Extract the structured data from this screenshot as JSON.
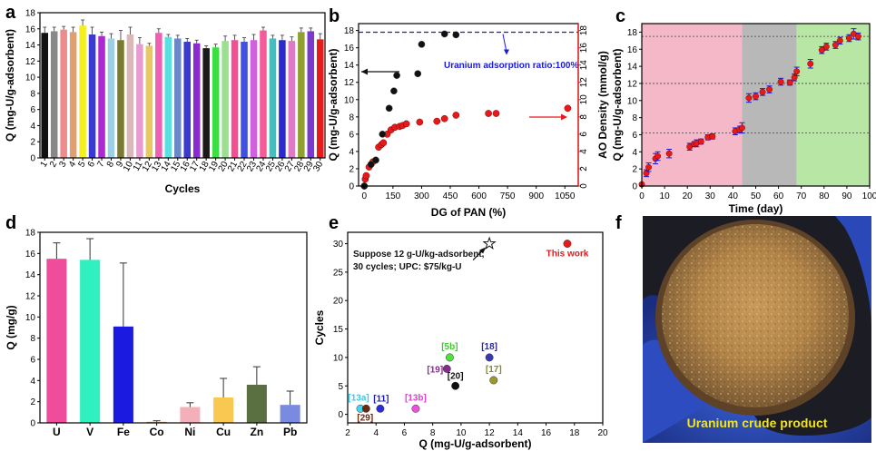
{
  "panel_letters": {
    "a": "a",
    "b": "b",
    "c": "c",
    "d": "d",
    "e": "e",
    "f": "f"
  },
  "colors": {
    "red": "#e8191a",
    "blue": "#1a1adc",
    "black": "#111111",
    "pink_band": "#f4b8c8",
    "grey_band": "#b8b8b8",
    "green_band": "#b8e6a4"
  },
  "chart_data": [
    {
      "id": "a",
      "type": "bar",
      "title": "",
      "xlabel": "Cycles",
      "ylabel": "Q (mg-U/g-adsorbent)",
      "ylim": [
        0,
        18
      ],
      "yticks": [
        0,
        2,
        4,
        6,
        8,
        10,
        12,
        14,
        16,
        18
      ],
      "categories": [
        "1",
        "2",
        "3",
        "4",
        "5",
        "6",
        "7",
        "8",
        "9",
        "10",
        "11",
        "12",
        "13",
        "14",
        "15",
        "16",
        "17",
        "18",
        "19",
        "20",
        "21",
        "22",
        "23",
        "24",
        "25",
        "26",
        "27",
        "28",
        "29",
        "30"
      ],
      "values": [
        15.5,
        15.7,
        15.9,
        15.6,
        16.4,
        15.3,
        15.1,
        14.8,
        14.6,
        15.3,
        14.1,
        13.9,
        15.5,
        15.0,
        14.8,
        14.4,
        14.2,
        13.6,
        13.7,
        14.5,
        14.6,
        14.4,
        14.6,
        15.8,
        14.8,
        14.6,
        14.5,
        15.6,
        15.7,
        14.7
      ],
      "errors": [
        0.7,
        0.5,
        0.4,
        0.6,
        0.7,
        0.9,
        0.5,
        0.6,
        1.2,
        0.9,
        0.8,
        0.3,
        0.5,
        0.3,
        0.4,
        0.4,
        0.4,
        0.3,
        0.4,
        0.6,
        0.6,
        0.5,
        0.7,
        0.4,
        0.4,
        0.6,
        0.5,
        0.5,
        0.4,
        0.7
      ],
      "bar_colors": [
        "#111111",
        "#888888",
        "#ed8c8c",
        "#e0a070",
        "#f5ef20",
        "#3a3ad0",
        "#ad2ad0",
        "#9ad0e8",
        "#7a7a30",
        "#d8b8b8",
        "#e89bd0",
        "#e8c860",
        "#f060b0",
        "#5ae0e0",
        "#6888c8",
        "#3a3ad0",
        "#8a2ad0",
        "#1a1a1a",
        "#3ae040",
        "#9ae090",
        "#f05090",
        "#4050e0",
        "#d060e0",
        "#f55a9a",
        "#40c0c0",
        "#2a2ad0",
        "#e07ac8",
        "#90a030",
        "#7a3ad0",
        "#e81a1a"
      ]
    },
    {
      "id": "b",
      "type": "scatter",
      "xlabel": "DG of PAN (%)",
      "ylabel": "Q (mg-U/g-adsorbent)",
      "ylabel_right": "AO Density (mmol/g)",
      "xlim": [
        -30,
        1120
      ],
      "xticks": [
        0,
        150,
        300,
        450,
        600,
        750,
        900,
        1050
      ],
      "ylim": [
        0,
        18.8
      ],
      "yticks": [
        0,
        2,
        4,
        6,
        8,
        10,
        12,
        14,
        16,
        18
      ],
      "ylim_right": [
        0,
        18.8
      ],
      "yticks_right": [
        0,
        2,
        4,
        6,
        8,
        10,
        12,
        14,
        16,
        18
      ],
      "reference_line": 17.8,
      "annotation": "Uranium adsorption ratio:100%",
      "series": [
        {
          "name": "Q",
          "axis": "left",
          "color": "#111111",
          "x": [
            0,
            35,
            60,
            95,
            130,
            155,
            170,
            280,
            300,
            420,
            480
          ],
          "y": [
            0,
            2.5,
            3.0,
            6.0,
            9.0,
            11.0,
            12.8,
            13.0,
            16.4,
            17.6,
            17.5
          ]
        },
        {
          "name": "AO Density",
          "axis": "right",
          "color": "#e8191a",
          "x": [
            0,
            5,
            10,
            25,
            35,
            45,
            60,
            75,
            90,
            100,
            120,
            140,
            160,
            185,
            200,
            220,
            290,
            380,
            420,
            480,
            650,
            690,
            1065
          ],
          "y": [
            0,
            0.8,
            1.2,
            2.2,
            2.5,
            2.8,
            3.0,
            4.5,
            4.8,
            5.0,
            6.0,
            6.5,
            6.8,
            6.9,
            7.0,
            7.2,
            7.4,
            7.5,
            7.8,
            8.2,
            8.4,
            8.4,
            9.0
          ]
        }
      ]
    },
    {
      "id": "c",
      "type": "scatter",
      "xlabel": "Time  (day)",
      "ylabel": "Q (mg-U/g-adsorbent)",
      "xlim": [
        0,
        100
      ],
      "xticks": [
        0,
        10,
        20,
        30,
        40,
        50,
        60,
        70,
        80,
        90,
        100
      ],
      "ylim": [
        0,
        19
      ],
      "yticks": [
        0,
        2,
        4,
        6,
        8,
        10,
        12,
        14,
        16,
        18
      ],
      "bands": [
        {
          "from": 0,
          "to": 44,
          "color": "#f4b8c8"
        },
        {
          "from": 44,
          "to": 68,
          "color": "#b8b8b8"
        },
        {
          "from": 68,
          "to": 100,
          "color": "#b8e6a4"
        }
      ],
      "hlines": [
        6.2,
        12.0,
        17.5
      ],
      "x": [
        0,
        2,
        3,
        6,
        7,
        12,
        21,
        23,
        24,
        26,
        29,
        31,
        41,
        43,
        44,
        47,
        50,
        53,
        56,
        61,
        65,
        67,
        68,
        74,
        79,
        81,
        85,
        87,
        91,
        93,
        95
      ],
      "y": [
        0.2,
        1.5,
        2.2,
        3.2,
        3.5,
        3.8,
        4.6,
        4.9,
        5.0,
        5.2,
        5.7,
        5.8,
        6.4,
        6.6,
        6.8,
        10.3,
        10.5,
        11.0,
        11.3,
        12.2,
        12.1,
        12.7,
        13.4,
        14.3,
        15.9,
        16.3,
        16.5,
        17.0,
        17.3,
        17.8,
        17.5
      ],
      "errors": [
        0.1,
        0.4,
        0.5,
        0.6,
        0.5,
        0.5,
        0.4,
        0.3,
        0.4,
        0.3,
        0.3,
        0.3,
        0.4,
        0.4,
        0.6,
        0.5,
        0.4,
        0.4,
        0.4,
        0.4,
        0.3,
        0.4,
        0.5,
        0.5,
        0.4,
        0.4,
        0.4,
        0.4,
        0.4,
        0.6,
        0.4
      ]
    },
    {
      "id": "d",
      "type": "bar",
      "xlabel": "",
      "ylabel": "Q (mg/g)",
      "ylim": [
        0,
        18
      ],
      "yticks": [
        0,
        2,
        4,
        6,
        8,
        10,
        12,
        14,
        16,
        18
      ],
      "categories": [
        "U",
        "V",
        "Fe",
        "Co",
        "Ni",
        "Cu",
        "Zn",
        "Pb"
      ],
      "values": [
        15.5,
        15.4,
        9.1,
        0.1,
        1.5,
        2.4,
        3.6,
        1.7
      ],
      "errors": [
        1.5,
        2.0,
        6.0,
        0.1,
        0.4,
        1.8,
        1.7,
        1.3
      ],
      "bar_colors": [
        "#f04c9c",
        "#30f0c0",
        "#1a1ae0",
        "#e89030",
        "#f4b0b8",
        "#f8c850",
        "#5a7040",
        "#7a8ae0"
      ]
    },
    {
      "id": "e",
      "type": "scatter",
      "xlabel": "Q (mg-U/g-adsorbent)",
      "ylabel": "Cycles",
      "xlim": [
        2,
        20
      ],
      "xticks": [
        2,
        4,
        6,
        8,
        10,
        12,
        14,
        16,
        18,
        20
      ],
      "ylim": [
        -1.5,
        32
      ],
      "yticks": [
        0,
        5,
        10,
        15,
        20,
        25,
        30
      ],
      "note_line1": "Suppose 12 g-U/kg-adsorbent,",
      "note_line2": "30 cycles; UPC: $75/kg-U",
      "star": {
        "x": 12,
        "y": 30
      },
      "points": [
        {
          "label": "This work",
          "x": 17.5,
          "y": 30,
          "color": "#e8191a",
          "label_color": "#e8191a"
        },
        {
          "label": "[13a]",
          "x": 2.9,
          "y": 1,
          "color": "#40d8f0",
          "label_color": "#40c8e8"
        },
        {
          "label": "[29]",
          "x": 3.3,
          "y": 1,
          "color": "#6a2a10",
          "label_color": "#6a2a10"
        },
        {
          "label": "[11]",
          "x": 4.3,
          "y": 1,
          "color": "#2a2ae0",
          "label_color": "#1a1ac8"
        },
        {
          "label": "[13b]",
          "x": 6.8,
          "y": 1,
          "color": "#f050e0",
          "label_color": "#e040d0"
        },
        {
          "label": "[19]",
          "x": 9.0,
          "y": 8,
          "color": "#8a2a90",
          "label_color": "#8a2a90"
        },
        {
          "label": "[5b]",
          "x": 9.2,
          "y": 10,
          "color": "#50e040",
          "label_color": "#40c830"
        },
        {
          "label": "[20]",
          "x": 9.6,
          "y": 5,
          "color": "#111111",
          "label_color": "#111111"
        },
        {
          "label": "[18]",
          "x": 12.0,
          "y": 10,
          "color": "#3a3ab0",
          "label_color": "#2a2a90"
        },
        {
          "label": "[17]",
          "x": 12.3,
          "y": 6,
          "color": "#9a9a30",
          "label_color": "#8a8a2a"
        }
      ]
    }
  ],
  "photo": {
    "caption": "Uranium crude product"
  }
}
